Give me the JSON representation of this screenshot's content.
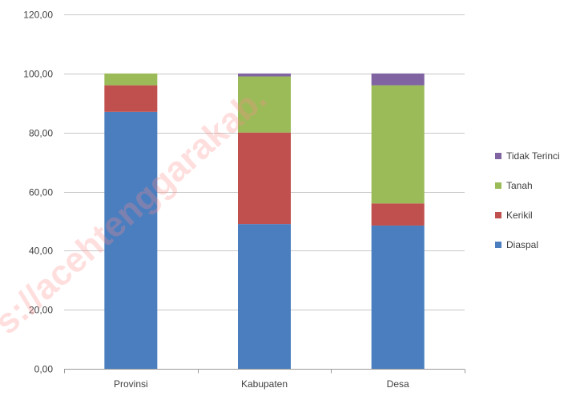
{
  "chart_data": {
    "type": "bar",
    "stacked": true,
    "categories": [
      "Provinsi",
      "Kabupaten",
      "Desa"
    ],
    "series": [
      {
        "name": "Diaspal",
        "color": "#4a7ebf",
        "values": [
          87.0,
          49.0,
          48.5
        ]
      },
      {
        "name": "Kerikil",
        "color": "#c0504d",
        "values": [
          9.0,
          31.0,
          7.5
        ]
      },
      {
        "name": "Tanah",
        "color": "#9bbb59",
        "values": [
          4.0,
          19.0,
          40.0
        ]
      },
      {
        "name": "Tidak Terinci",
        "color": "#8064a2",
        "values": [
          0.0,
          1.0,
          4.0
        ]
      }
    ],
    "ylim": [
      0,
      120
    ],
    "yticks": [
      "0,00",
      "20,00",
      "40,00",
      "60,00",
      "80,00",
      "100,00",
      "120,00"
    ],
    "ytick_values": [
      0,
      20,
      40,
      60,
      80,
      100,
      120
    ],
    "grid": true,
    "legend_position": "right",
    "legend_order": [
      "Tidak Terinci",
      "Tanah",
      "Kerikil",
      "Diaspal"
    ]
  },
  "watermark_text": "s://acehtenggarakab."
}
